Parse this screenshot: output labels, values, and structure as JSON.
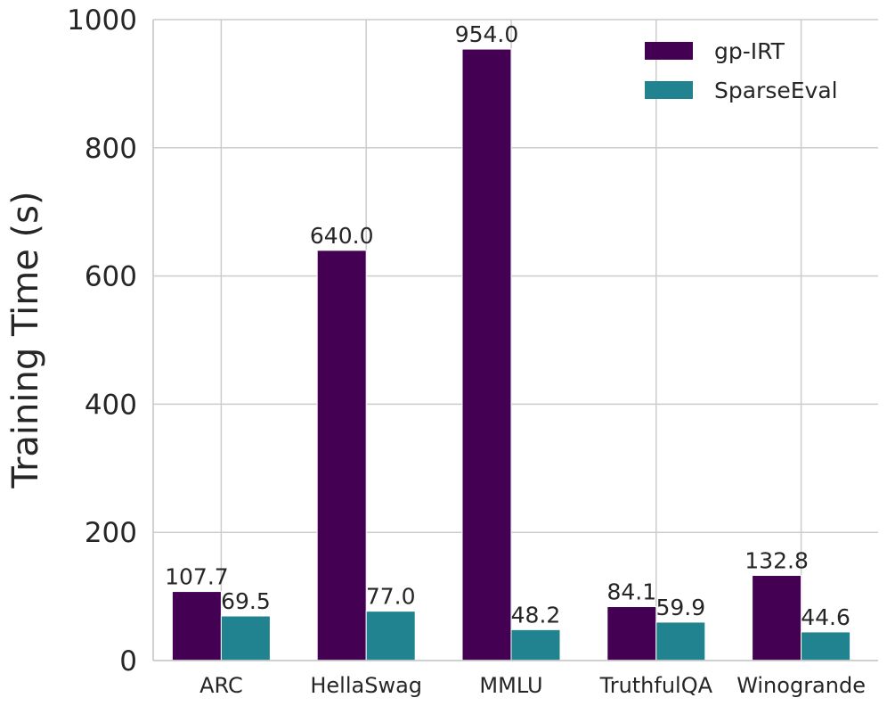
{
  "chart_data": {
    "type": "bar",
    "title": "",
    "xlabel": "",
    "ylabel": "Training Time (s)",
    "ylim": [
      0,
      1000
    ],
    "yticks": [
      "0",
      "200",
      "400",
      "600",
      "800",
      "1000"
    ],
    "ytick_values": [
      0,
      200,
      400,
      600,
      800,
      1000
    ],
    "grid": true,
    "legend_position": "top-right",
    "categories": [
      "ARC",
      "HellaSwag",
      "MMLU",
      "TruthfulQA",
      "Winogrande"
    ],
    "series": [
      {
        "name": "gp-IRT",
        "color": "#440154",
        "values": [
          107.7,
          640.0,
          954.0,
          84.1,
          132.8
        ],
        "labels": [
          "107.7",
          "640.0",
          "954.0",
          "84.1",
          "132.8"
        ]
      },
      {
        "name": "SparseEval",
        "color": "#21838f",
        "values": [
          69.5,
          77.0,
          48.2,
          59.9,
          44.6
        ],
        "labels": [
          "69.5",
          "77.0",
          "48.2",
          "59.9",
          "44.6"
        ]
      }
    ]
  }
}
